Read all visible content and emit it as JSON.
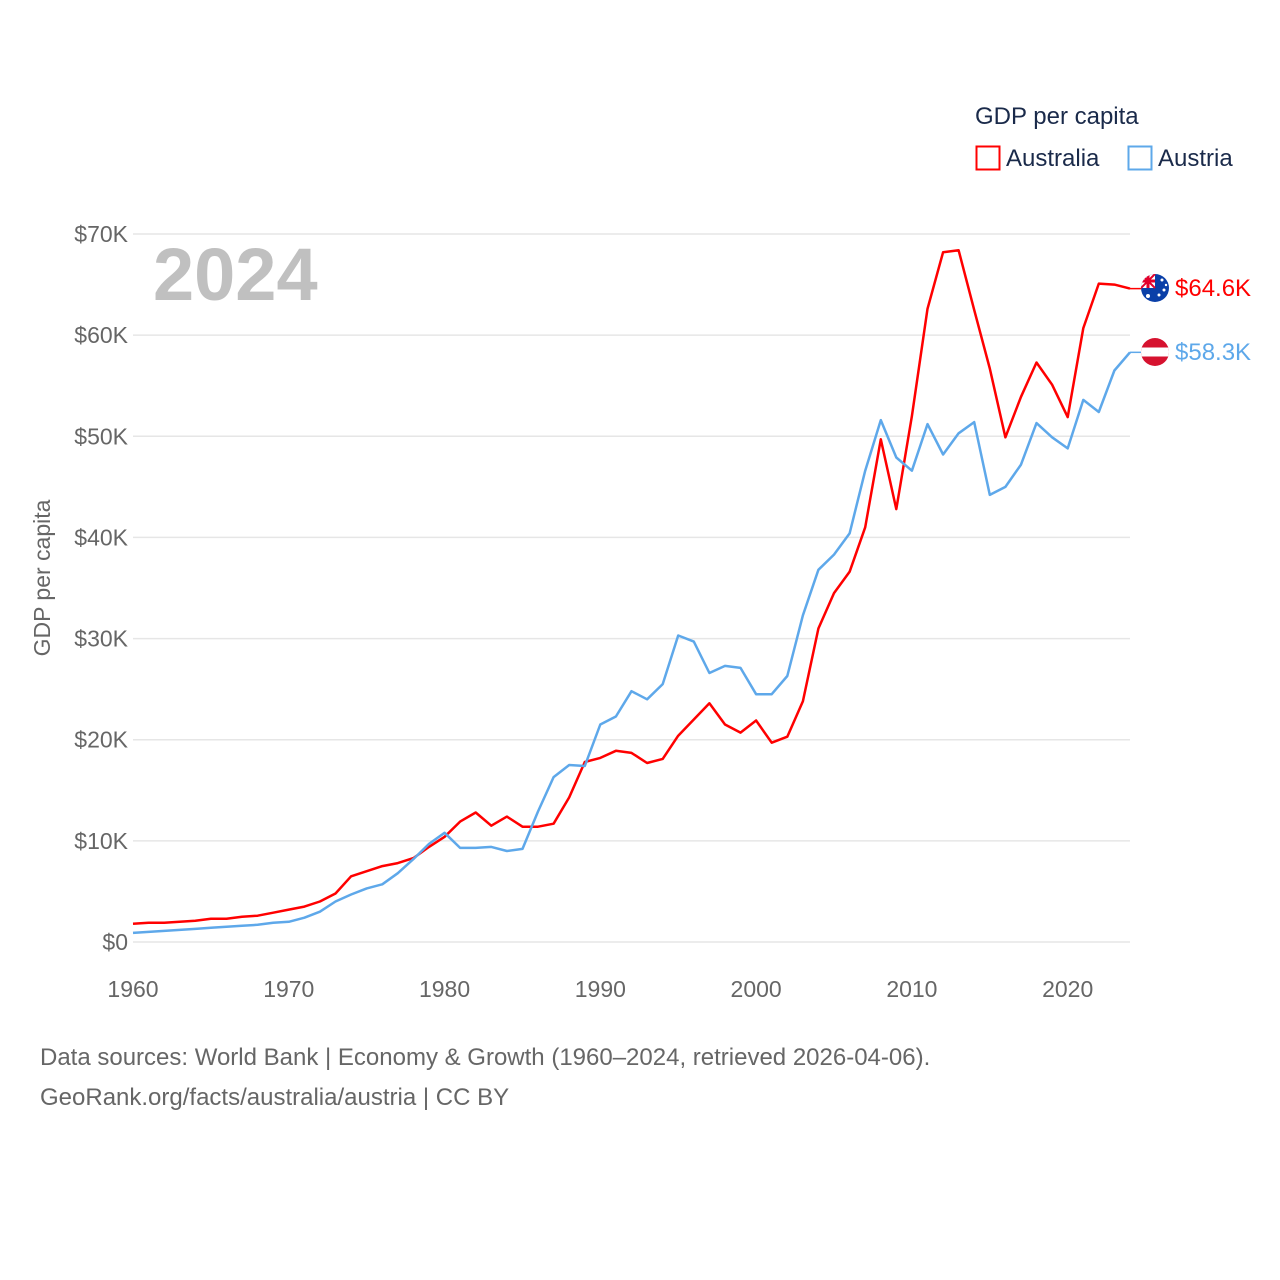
{
  "chart_data": {
    "type": "line",
    "title": "",
    "highlight_year_label": "2024",
    "xlabel": "",
    "ylabel": "GDP per capita",
    "xlim": [
      1960,
      2024
    ],
    "ylim": [
      0,
      70
    ],
    "grid": true,
    "x_ticks": [
      1960,
      1970,
      1980,
      1990,
      2000,
      2010,
      2020
    ],
    "x_tick_labels": [
      "1960",
      "1970",
      "1980",
      "1990",
      "2000",
      "2010",
      "2020"
    ],
    "y_ticks": [
      0,
      10,
      20,
      30,
      40,
      50,
      60,
      70
    ],
    "y_tick_labels": [
      "$0",
      "$10K",
      "$20K",
      "$30K",
      "$40K",
      "$50K",
      "$60K",
      "$70K"
    ],
    "legend": {
      "title": "GDP per capita",
      "placement": "top-right"
    },
    "x": [
      1960,
      1961,
      1962,
      1963,
      1964,
      1965,
      1966,
      1967,
      1968,
      1969,
      1970,
      1971,
      1972,
      1973,
      1974,
      1975,
      1976,
      1977,
      1978,
      1979,
      1980,
      1981,
      1982,
      1983,
      1984,
      1985,
      1986,
      1987,
      1988,
      1989,
      1990,
      1991,
      1992,
      1993,
      1994,
      1995,
      1996,
      1997,
      1998,
      1999,
      2000,
      2001,
      2002,
      2003,
      2004,
      2005,
      2006,
      2007,
      2008,
      2009,
      2010,
      2011,
      2012,
      2013,
      2014,
      2015,
      2016,
      2017,
      2018,
      2019,
      2020,
      2021,
      2022,
      2023,
      2024
    ],
    "series": [
      {
        "name": "Australia",
        "color": "#ff0000",
        "end_label": "$64.6K",
        "flag": "australia-flag",
        "values": [
          1.8,
          1.9,
          1.9,
          2.0,
          2.1,
          2.3,
          2.3,
          2.5,
          2.6,
          2.9,
          3.2,
          3.5,
          4.0,
          4.8,
          6.5,
          7.0,
          7.5,
          7.8,
          8.3,
          9.4,
          10.4,
          11.9,
          12.8,
          11.5,
          12.4,
          11.4,
          11.4,
          11.7,
          14.3,
          17.8,
          18.2,
          18.9,
          18.7,
          17.7,
          18.1,
          20.4,
          22.0,
          23.6,
          21.5,
          20.7,
          21.9,
          19.7,
          20.3,
          23.8,
          31.0,
          34.5,
          36.6,
          41.0,
          49.7,
          42.8,
          52.0,
          62.6,
          68.2,
          68.4,
          62.5,
          56.7,
          49.9,
          53.9,
          57.3,
          55.1,
          51.9,
          60.7,
          65.1,
          65.0,
          64.6
        ]
      },
      {
        "name": "Austria",
        "color": "#5ea8ea",
        "end_label": "$58.3K",
        "flag": "austria-flag",
        "values": [
          0.9,
          1.0,
          1.1,
          1.2,
          1.3,
          1.4,
          1.5,
          1.6,
          1.7,
          1.9,
          2.0,
          2.4,
          3.0,
          4.0,
          4.7,
          5.3,
          5.7,
          6.8,
          8.2,
          9.7,
          10.8,
          9.3,
          9.3,
          9.4,
          9.0,
          9.2,
          12.9,
          16.3,
          17.5,
          17.4,
          21.5,
          22.3,
          24.8,
          24.0,
          25.5,
          30.3,
          29.7,
          26.6,
          27.3,
          27.1,
          24.5,
          24.5,
          26.3,
          32.3,
          36.8,
          38.3,
          40.4,
          46.6,
          51.6,
          47.9,
          46.6,
          51.2,
          48.2,
          50.3,
          51.4,
          44.2,
          45.0,
          47.2,
          51.3,
          49.9,
          48.8,
          53.6,
          52.4,
          56.5,
          58.3
        ]
      }
    ]
  },
  "footer": {
    "line1": "Data sources: World Bank | Economy & Growth (1960–2024, retrieved 2026-04-06).",
    "line2": "GeoRank.org/facts/australia/austria | CC BY"
  }
}
